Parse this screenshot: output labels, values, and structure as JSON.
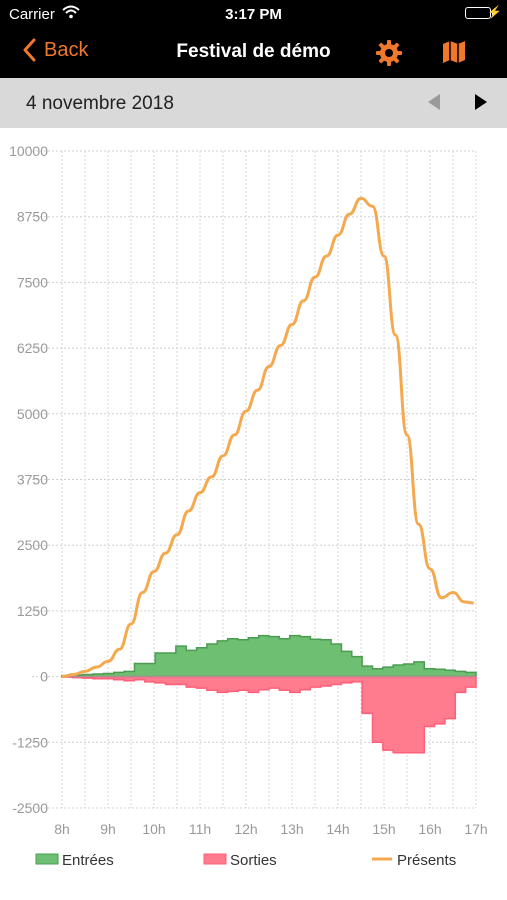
{
  "status_bar": {
    "carrier": "Carrier",
    "time": "3:17 PM"
  },
  "nav": {
    "back_label": "Back",
    "title": "Festival de démo"
  },
  "date_bar": {
    "date": "4 novembre 2018"
  },
  "colors": {
    "accent": "#f0782d",
    "entrees": "#6fbf73",
    "sorties": "#ff7b8e",
    "presents": "#f5a94f"
  },
  "chart_data": {
    "type": "area",
    "ylim": [
      -2500,
      10000
    ],
    "yticks": [
      "10000",
      "8750",
      "7500",
      "6250",
      "5000",
      "3750",
      "2500",
      "1250",
      "0",
      "-1250",
      "-2500"
    ],
    "xtick_labels": [
      "8h",
      "9h",
      "10h",
      "11h",
      "12h",
      "13h",
      "14h",
      "15h",
      "16h",
      "17h"
    ],
    "series": [
      {
        "name": "Entrées",
        "values": [
          20,
          30,
          40,
          50,
          60,
          80,
          100,
          250,
          250,
          450,
          450,
          580,
          500,
          550,
          620,
          680,
          720,
          700,
          740,
          780,
          760,
          720,
          780,
          760,
          710,
          700,
          620,
          480,
          380,
          200,
          150,
          180,
          220,
          240,
          280,
          150,
          140,
          120,
          100,
          80
        ]
      },
      {
        "name": "Sorties",
        "values": [
          -10,
          -20,
          -30,
          -40,
          -40,
          -60,
          -80,
          -60,
          -100,
          -120,
          -150,
          -150,
          -200,
          -220,
          -260,
          -300,
          -280,
          -260,
          -300,
          -250,
          -220,
          -260,
          -300,
          -250,
          -200,
          -180,
          -150,
          -120,
          -100,
          -700,
          -1250,
          -1400,
          -1450,
          -1450,
          -1450,
          -950,
          -900,
          -800,
          -300,
          -200
        ]
      },
      {
        "name": "Présents",
        "x": [
          8.0,
          8.25,
          8.5,
          8.75,
          9.0,
          9.25,
          9.5,
          9.75,
          10.0,
          10.25,
          10.5,
          10.75,
          11.0,
          11.25,
          11.5,
          11.75,
          12.0,
          12.25,
          12.5,
          12.75,
          13.0,
          13.25,
          13.5,
          13.75,
          14.0,
          14.25,
          14.5,
          14.75,
          15.0,
          15.25,
          15.5,
          15.75,
          16.0,
          16.25,
          16.5,
          16.75,
          16.95
        ],
        "values": [
          0,
          40,
          100,
          180,
          290,
          520,
          1000,
          1600,
          2000,
          2350,
          2700,
          3150,
          3500,
          3800,
          4200,
          4600,
          5050,
          5450,
          5900,
          6300,
          6700,
          7150,
          7600,
          8000,
          8400,
          8800,
          9100,
          8950,
          8000,
          6500,
          4600,
          2900,
          2050,
          1500,
          1600,
          1420,
          1400
        ]
      }
    ]
  }
}
